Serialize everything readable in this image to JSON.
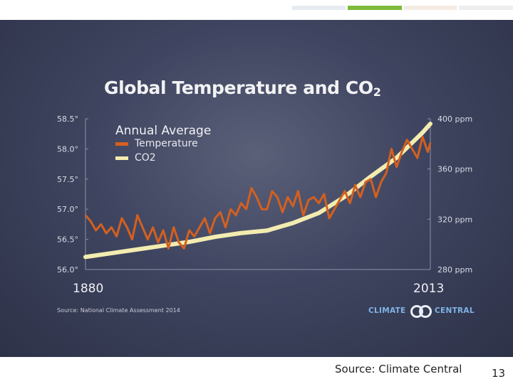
{
  "slide": {
    "title_main": "Global Temperature and CO",
    "title_sub": "2",
    "source_note": "Source: National Climate Assessment 2014",
    "logo": {
      "left": "CLIMATE",
      "right": "CENTRAL",
      "icon": "climate-central-rings-icon"
    },
    "footer_source": "Source: Climate Central",
    "page_number": "13"
  },
  "colors": {
    "temperature": "#d4601f",
    "co2": "#f3ecb0",
    "topbar": [
      "#e6ecf2",
      "#7dbb3a",
      "#f4ece4",
      "#eeeeee"
    ]
  },
  "chart_data": {
    "type": "line",
    "legend": {
      "title": "Annual Average",
      "position": "top-left",
      "entries": [
        "Temperature",
        "CO2"
      ]
    },
    "x_range": [
      1880,
      2013
    ],
    "x_tick_labels": [
      "1880",
      "2013"
    ],
    "left_axis": {
      "unit": "°F",
      "range": [
        56.0,
        58.5
      ],
      "tick_labels": [
        "58.5°",
        "58.0°",
        "57.5°",
        "57.0°",
        "56.5°",
        "56.0°"
      ]
    },
    "right_axis": {
      "unit": "ppm",
      "range": [
        280,
        400
      ],
      "tick_labels": [
        "400 ppm",
        "360 ppm",
        "320 ppm",
        "280 ppm"
      ]
    },
    "series": [
      {
        "name": "Temperature",
        "axis": "left",
        "x": [
          1880,
          1882,
          1884,
          1886,
          1888,
          1890,
          1892,
          1894,
          1896,
          1898,
          1900,
          1902,
          1904,
          1906,
          1908,
          1910,
          1912,
          1914,
          1916,
          1918,
          1920,
          1922,
          1924,
          1926,
          1928,
          1930,
          1932,
          1934,
          1936,
          1938,
          1940,
          1942,
          1944,
          1946,
          1948,
          1950,
          1952,
          1954,
          1956,
          1958,
          1960,
          1962,
          1964,
          1966,
          1968,
          1970,
          1972,
          1974,
          1976,
          1978,
          1980,
          1982,
          1984,
          1986,
          1988,
          1990,
          1992,
          1994,
          1996,
          1998,
          2000,
          2002,
          2004,
          2006,
          2008,
          2010,
          2012,
          2013
        ],
        "values": [
          56.9,
          56.8,
          56.65,
          56.75,
          56.6,
          56.7,
          56.55,
          56.85,
          56.7,
          56.5,
          56.9,
          56.7,
          56.5,
          56.7,
          56.45,
          56.65,
          56.35,
          56.7,
          56.45,
          56.35,
          56.65,
          56.55,
          56.7,
          56.85,
          56.6,
          56.85,
          56.95,
          56.7,
          57.0,
          56.9,
          57.1,
          57.0,
          57.35,
          57.2,
          57.0,
          57.0,
          57.3,
          57.2,
          56.95,
          57.2,
          57.05,
          57.3,
          56.9,
          57.15,
          57.2,
          57.1,
          57.25,
          56.85,
          57.0,
          57.15,
          57.3,
          57.1,
          57.4,
          57.2,
          57.45,
          57.5,
          57.2,
          57.45,
          57.6,
          58.0,
          57.7,
          57.95,
          58.15,
          58.0,
          57.85,
          58.2,
          57.95,
          58.1
        ]
      },
      {
        "name": "CO2",
        "axis": "right",
        "x": [
          1880,
          1890,
          1900,
          1910,
          1920,
          1930,
          1940,
          1950,
          1960,
          1970,
          1980,
          1990,
          2000,
          2005,
          2010,
          2013
        ],
        "values": [
          290,
          293,
          296,
          299,
          302,
          306,
          309,
          311,
          317,
          325,
          338,
          354,
          369,
          379,
          389,
          396
        ]
      }
    ]
  }
}
